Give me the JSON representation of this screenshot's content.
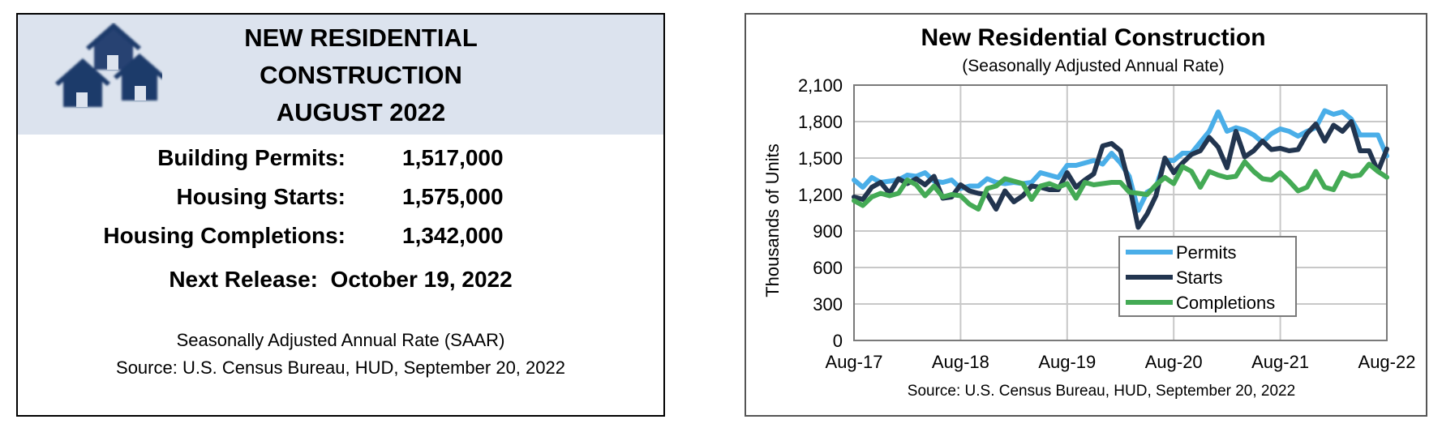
{
  "card": {
    "title_lines": [
      "NEW RESIDENTIAL",
      "CONSTRUCTION",
      "AUGUST 2022"
    ],
    "stats": [
      {
        "label": "Building Permits:",
        "value": "1,517,000"
      },
      {
        "label": "Housing Starts:",
        "value": "1,575,000"
      },
      {
        "label": "Housing Completions:",
        "value": "1,342,000"
      }
    ],
    "next_release": "Next Release:  October 19, 2022",
    "note_line1": "Seasonally Adjusted Annual Rate (SAAR)",
    "note_line2": "Source:  U.S. Census Bureau, HUD, September 20, 2022",
    "icon": "houses-icon",
    "colors": {
      "header_bg": "#dce3ee",
      "house": "#1f3a6b"
    }
  },
  "chart_data": {
    "type": "line",
    "title": "New Residential Construction",
    "subtitle": "(Seasonally Adjusted Annual Rate)",
    "ylabel": "Thousands of Units",
    "xlabel": "",
    "source": "Source:  U.S. Census Bureau, HUD, September 20, 2022",
    "ylim": [
      0,
      2100
    ],
    "yticks": [
      0,
      300,
      600,
      900,
      1200,
      1500,
      1800,
      2100
    ],
    "ytick_labels": [
      "0",
      "300",
      "600",
      "900",
      "1,200",
      "1,500",
      "1,800",
      "2,100"
    ],
    "xtick_labels": [
      "Aug-17",
      "Aug-18",
      "Aug-19",
      "Aug-20",
      "Aug-21",
      "Aug-22"
    ],
    "grid": true,
    "legend_position": "bottom-right",
    "x": [
      "2017-08",
      "2017-09",
      "2017-10",
      "2017-11",
      "2017-12",
      "2018-01",
      "2018-02",
      "2018-03",
      "2018-04",
      "2018-05",
      "2018-06",
      "2018-07",
      "2018-08",
      "2018-09",
      "2018-10",
      "2018-11",
      "2018-12",
      "2019-01",
      "2019-02",
      "2019-03",
      "2019-04",
      "2019-05",
      "2019-06",
      "2019-07",
      "2019-08",
      "2019-09",
      "2019-10",
      "2019-11",
      "2019-12",
      "2020-01",
      "2020-02",
      "2020-03",
      "2020-04",
      "2020-05",
      "2020-06",
      "2020-07",
      "2020-08",
      "2020-09",
      "2020-10",
      "2020-11",
      "2020-12",
      "2021-01",
      "2021-02",
      "2021-03",
      "2021-04",
      "2021-05",
      "2021-06",
      "2021-07",
      "2021-08",
      "2021-09",
      "2021-10",
      "2021-11",
      "2021-12",
      "2022-01",
      "2022-02",
      "2022-03",
      "2022-04",
      "2022-05",
      "2022-06",
      "2022-07",
      "2022-08"
    ],
    "series": [
      {
        "name": "Permits",
        "color": "#4aaee8",
        "values": [
          1320,
          1260,
          1340,
          1300,
          1310,
          1320,
          1360,
          1350,
          1380,
          1310,
          1300,
          1320,
          1250,
          1270,
          1270,
          1330,
          1300,
          1290,
          1300,
          1290,
          1300,
          1380,
          1360,
          1340,
          1440,
          1440,
          1460,
          1480,
          1450,
          1540,
          1460,
          1350,
          1070,
          1220,
          1260,
          1480,
          1480,
          1540,
          1540,
          1630,
          1720,
          1880,
          1720,
          1750,
          1730,
          1690,
          1630,
          1700,
          1740,
          1720,
          1680,
          1720,
          1750,
          1890,
          1860,
          1880,
          1820,
          1690,
          1690,
          1690,
          1517
        ]
      },
      {
        "name": "Starts",
        "color": "#22354f",
        "values": [
          1180,
          1160,
          1260,
          1300,
          1210,
          1330,
          1290,
          1330,
          1280,
          1350,
          1170,
          1180,
          1280,
          1230,
          1210,
          1200,
          1080,
          1230,
          1140,
          1190,
          1270,
          1260,
          1240,
          1240,
          1380,
          1260,
          1320,
          1370,
          1600,
          1620,
          1560,
          1280,
          930,
          1040,
          1190,
          1500,
          1380,
          1460,
          1530,
          1560,
          1670,
          1590,
          1420,
          1720,
          1510,
          1560,
          1640,
          1570,
          1580,
          1560,
          1570,
          1700,
          1780,
          1640,
          1770,
          1720,
          1800,
          1560,
          1560,
          1390,
          1575
        ]
      },
      {
        "name": "Completions",
        "color": "#44aa55",
        "values": [
          1150,
          1110,
          1180,
          1210,
          1190,
          1210,
          1320,
          1280,
          1190,
          1270,
          1180,
          1200,
          1190,
          1120,
          1080,
          1250,
          1270,
          1330,
          1310,
          1290,
          1160,
          1270,
          1290,
          1260,
          1290,
          1170,
          1300,
          1280,
          1290,
          1300,
          1300,
          1220,
          1210,
          1200,
          1280,
          1340,
          1290,
          1430,
          1390,
          1260,
          1390,
          1360,
          1340,
          1350,
          1470,
          1390,
          1330,
          1320,
          1380,
          1310,
          1230,
          1260,
          1390,
          1260,
          1240,
          1380,
          1350,
          1360,
          1450,
          1390,
          1342
        ]
      }
    ]
  }
}
